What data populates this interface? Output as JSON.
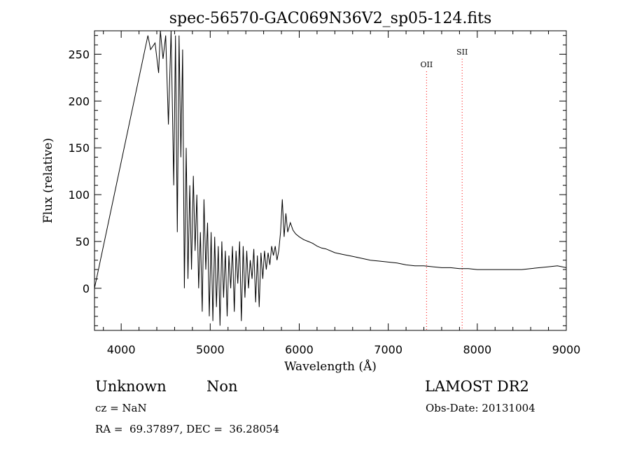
{
  "chart_data": {
    "type": "line",
    "title": "spec-56570-GAC069N36V2_sp05-124.fits",
    "xlabel": "Wavelength (Å)",
    "ylabel": "Flux (relative)",
    "xlim": [
      3700,
      9000
    ],
    "ylim": [
      -45,
      275
    ],
    "xticks": [
      "4000",
      "5000",
      "6000",
      "7000",
      "8000",
      "9000"
    ],
    "yticks": [
      "0",
      "50",
      "100",
      "150",
      "200",
      "250"
    ],
    "grid": false,
    "series": [
      {
        "color": "#000000",
        "x": [
          3700,
          4300,
          4330,
          4380,
          4420,
          4440,
          4470,
          4500,
          4530,
          4560,
          4590,
          4610,
          4630,
          4650,
          4670,
          4690,
          4710,
          4730,
          4750,
          4770,
          4790,
          4810,
          4830,
          4850,
          4870,
          4890,
          4910,
          4930,
          4950,
          4970,
          4990,
          5010,
          5030,
          5050,
          5070,
          5090,
          5110,
          5130,
          5150,
          5170,
          5190,
          5210,
          5230,
          5250,
          5270,
          5290,
          5310,
          5330,
          5350,
          5370,
          5390,
          5410,
          5430,
          5450,
          5470,
          5490,
          5510,
          5530,
          5550,
          5570,
          5590,
          5610,
          5630,
          5650,
          5670,
          5690,
          5710,
          5730,
          5750,
          5770,
          5790,
          5810,
          5830,
          5850,
          5870,
          5900,
          5930,
          5960,
          6000,
          6050,
          6100,
          6150,
          6200,
          6250,
          6300,
          6400,
          6500,
          6600,
          6700,
          6800,
          6900,
          7000,
          7100,
          7200,
          7300,
          7400,
          7500,
          7600,
          7700,
          7800,
          7900,
          8000,
          8100,
          8200,
          8300,
          8400,
          8500,
          8600,
          8700,
          8800,
          8900,
          9000
        ],
        "y": [
          0,
          270,
          255,
          262,
          230,
          275,
          245,
          270,
          175,
          275,
          110,
          270,
          60,
          270,
          140,
          255,
          0,
          150,
          10,
          110,
          20,
          120,
          40,
          100,
          0,
          60,
          -25,
          95,
          20,
          70,
          -30,
          60,
          -35,
          55,
          -20,
          45,
          -40,
          50,
          -10,
          40,
          -30,
          35,
          0,
          45,
          -25,
          40,
          5,
          50,
          -35,
          45,
          -10,
          40,
          0,
          30,
          10,
          42,
          -15,
          35,
          -20,
          38,
          10,
          40,
          20,
          38,
          25,
          45,
          35,
          45,
          30,
          40,
          60,
          95,
          55,
          80,
          60,
          70,
          62,
          58,
          55,
          52,
          50,
          48,
          45,
          43,
          42,
          38,
          36,
          34,
          32,
          30,
          29,
          28,
          27,
          25,
          24,
          24,
          23,
          22,
          22,
          21,
          21,
          20,
          20,
          20,
          20,
          20,
          20,
          21,
          22,
          23,
          24,
          22
        ]
      }
    ],
    "lines": [
      {
        "label": "OII",
        "x": 7430,
        "color": "#ff0000"
      },
      {
        "label": "SII",
        "x": 7830,
        "color": "#ff0000"
      }
    ]
  },
  "info": {
    "line1_left": "Unknown",
    "line1_mid": "Non",
    "line1_right": "LAMOST DR2",
    "cz": "cz = NaN",
    "obs_date": "Obs-Date: 20131004",
    "radec": "RA =  69.37897, DEC =  36.28054"
  }
}
